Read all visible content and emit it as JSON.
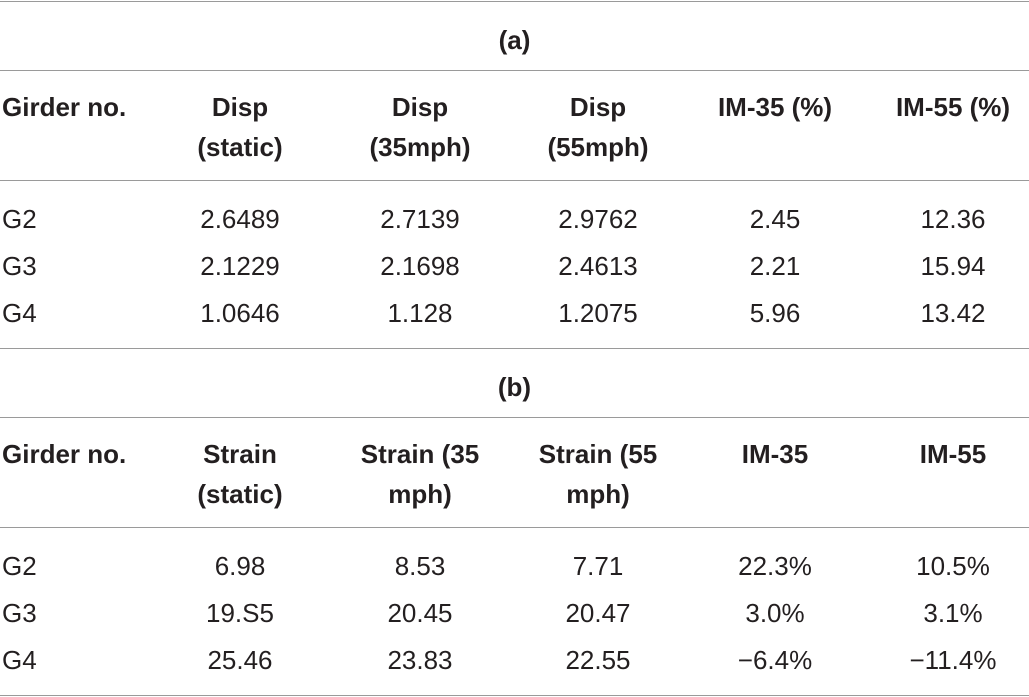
{
  "sections": [
    {
      "label": "(a)",
      "header": [
        [
          "Girder no."
        ],
        [
          "Disp",
          "(static)"
        ],
        [
          "Disp",
          "(35mph)"
        ],
        [
          "Disp",
          "(55mph)"
        ],
        [
          "IM-35 (%)"
        ],
        [
          "IM-55 (%)"
        ]
      ],
      "rows": [
        [
          "G2",
          "2.6489",
          "2.7139",
          "2.9762",
          "2.45",
          "12.36"
        ],
        [
          "G3",
          "2.1229",
          "2.1698",
          "2.4613",
          "2.21",
          "15.94"
        ],
        [
          "G4",
          "1.0646",
          "1.128",
          "1.2075",
          "5.96",
          "13.42"
        ]
      ]
    },
    {
      "label": "(b)",
      "header": [
        [
          "Girder no."
        ],
        [
          "Strain",
          "(static)"
        ],
        [
          "Strain (35",
          "mph)"
        ],
        [
          "Strain (55",
          "mph)"
        ],
        [
          "IM-35"
        ],
        [
          "IM-55"
        ]
      ],
      "rows": [
        [
          "G2",
          "6.98",
          "8.53",
          "7.71",
          "22.3%",
          "10.5%"
        ],
        [
          "G3",
          "19.S5",
          "20.45",
          "20.47",
          "3.0%",
          "3.1%"
        ],
        [
          "G4",
          "25.46",
          "23.83",
          "22.55",
          "−6.4%",
          "−11.4%"
        ]
      ]
    }
  ]
}
